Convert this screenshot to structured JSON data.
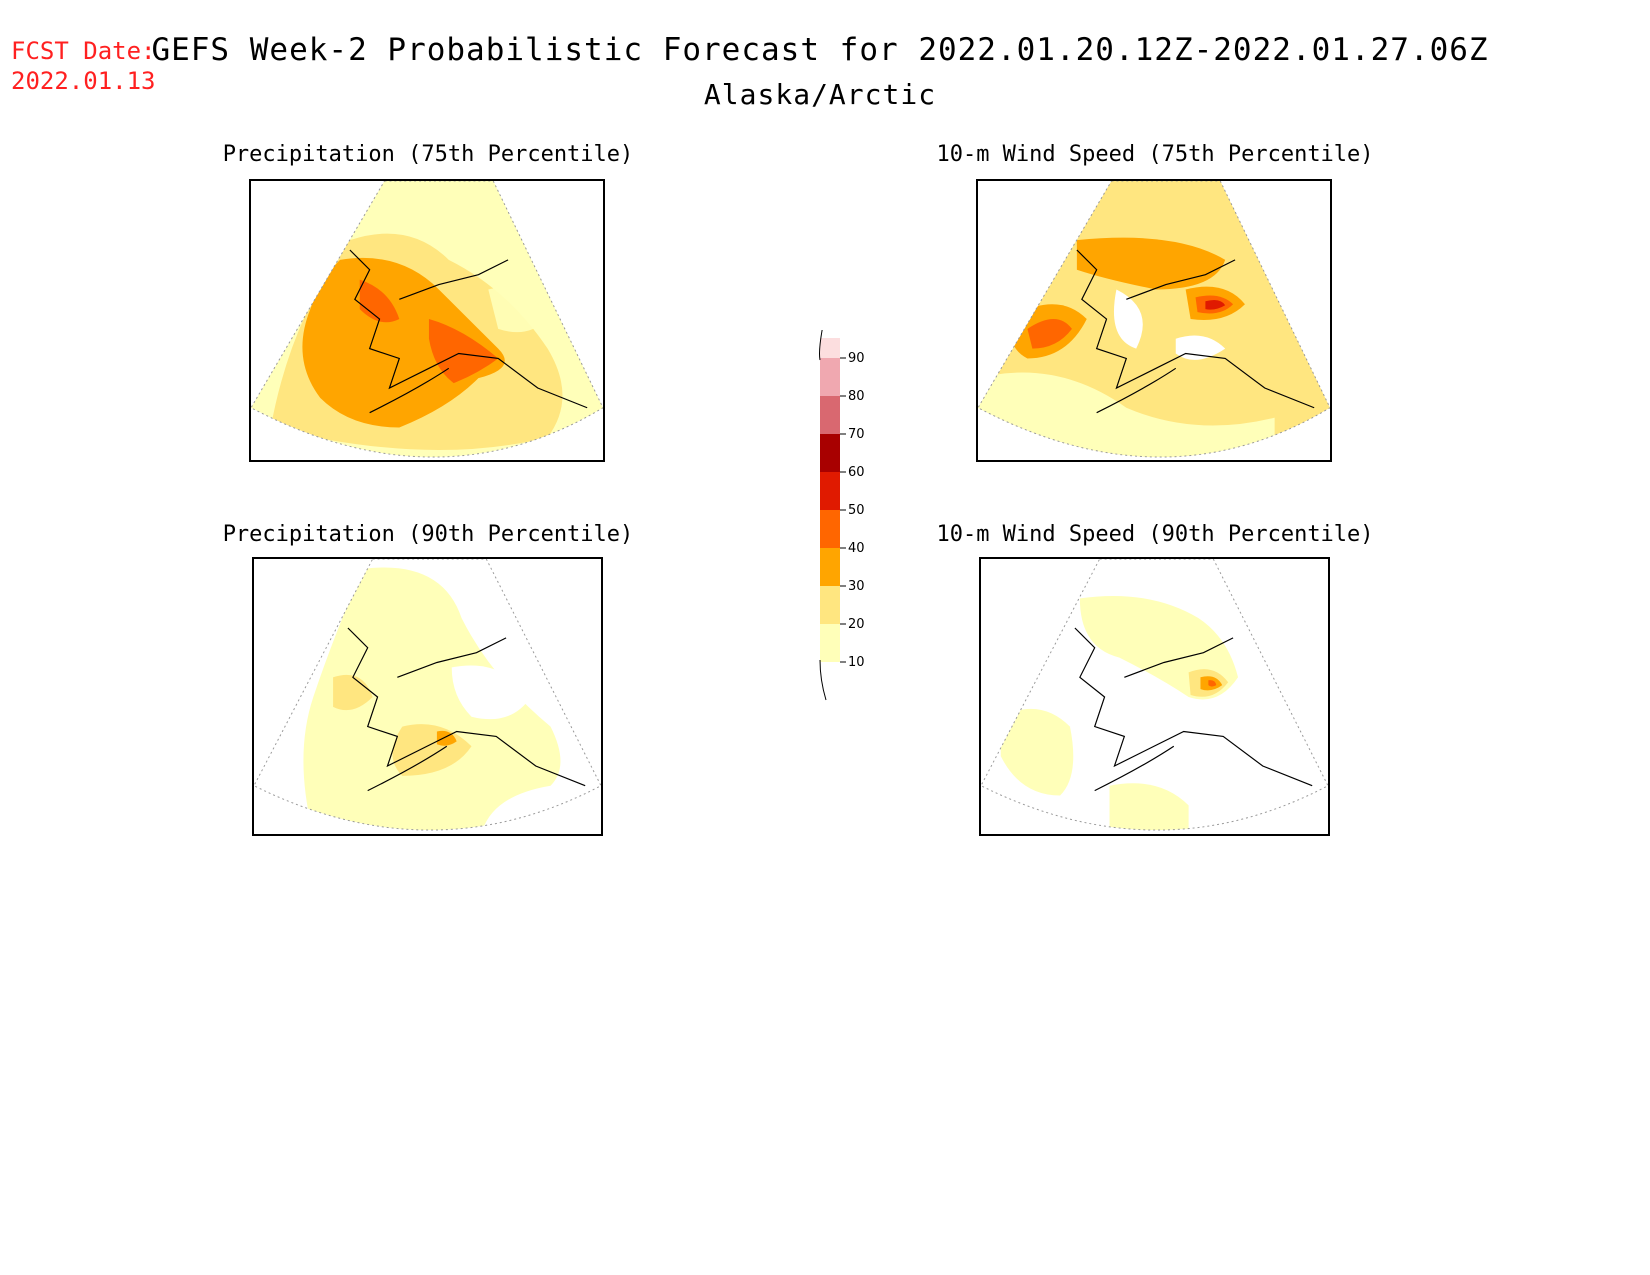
{
  "header": {
    "fcst_label": "FCST Date:",
    "fcst_date": "2022.01.13",
    "title": "GEFS Week-2 Probabilistic Forecast for 2022.01.20.12Z-2022.01.27.06Z",
    "region": "Alaska/Arctic"
  },
  "panels": [
    {
      "title": "Precipitation (75th Percentile)"
    },
    {
      "title": "10-m Wind Speed (75th Percentile)"
    },
    {
      "title": "Precipitation (90th Percentile)"
    },
    {
      "title": "10-m Wind Speed (90th Percentile)"
    }
  ],
  "colorbar": {
    "levels": [
      "10",
      "20",
      "30",
      "40",
      "50",
      "60",
      "70",
      "80",
      "90"
    ],
    "colors": {
      "c10": "#ffffb9",
      "c20": "#ffe680",
      "c30": "#ffa500",
      "c40": "#ff6600",
      "c50": "#e01a00",
      "c60": "#a80000",
      "c70": "#d96870",
      "c80": "#f0a8b0",
      "c90": "#fcdedf"
    }
  }
}
